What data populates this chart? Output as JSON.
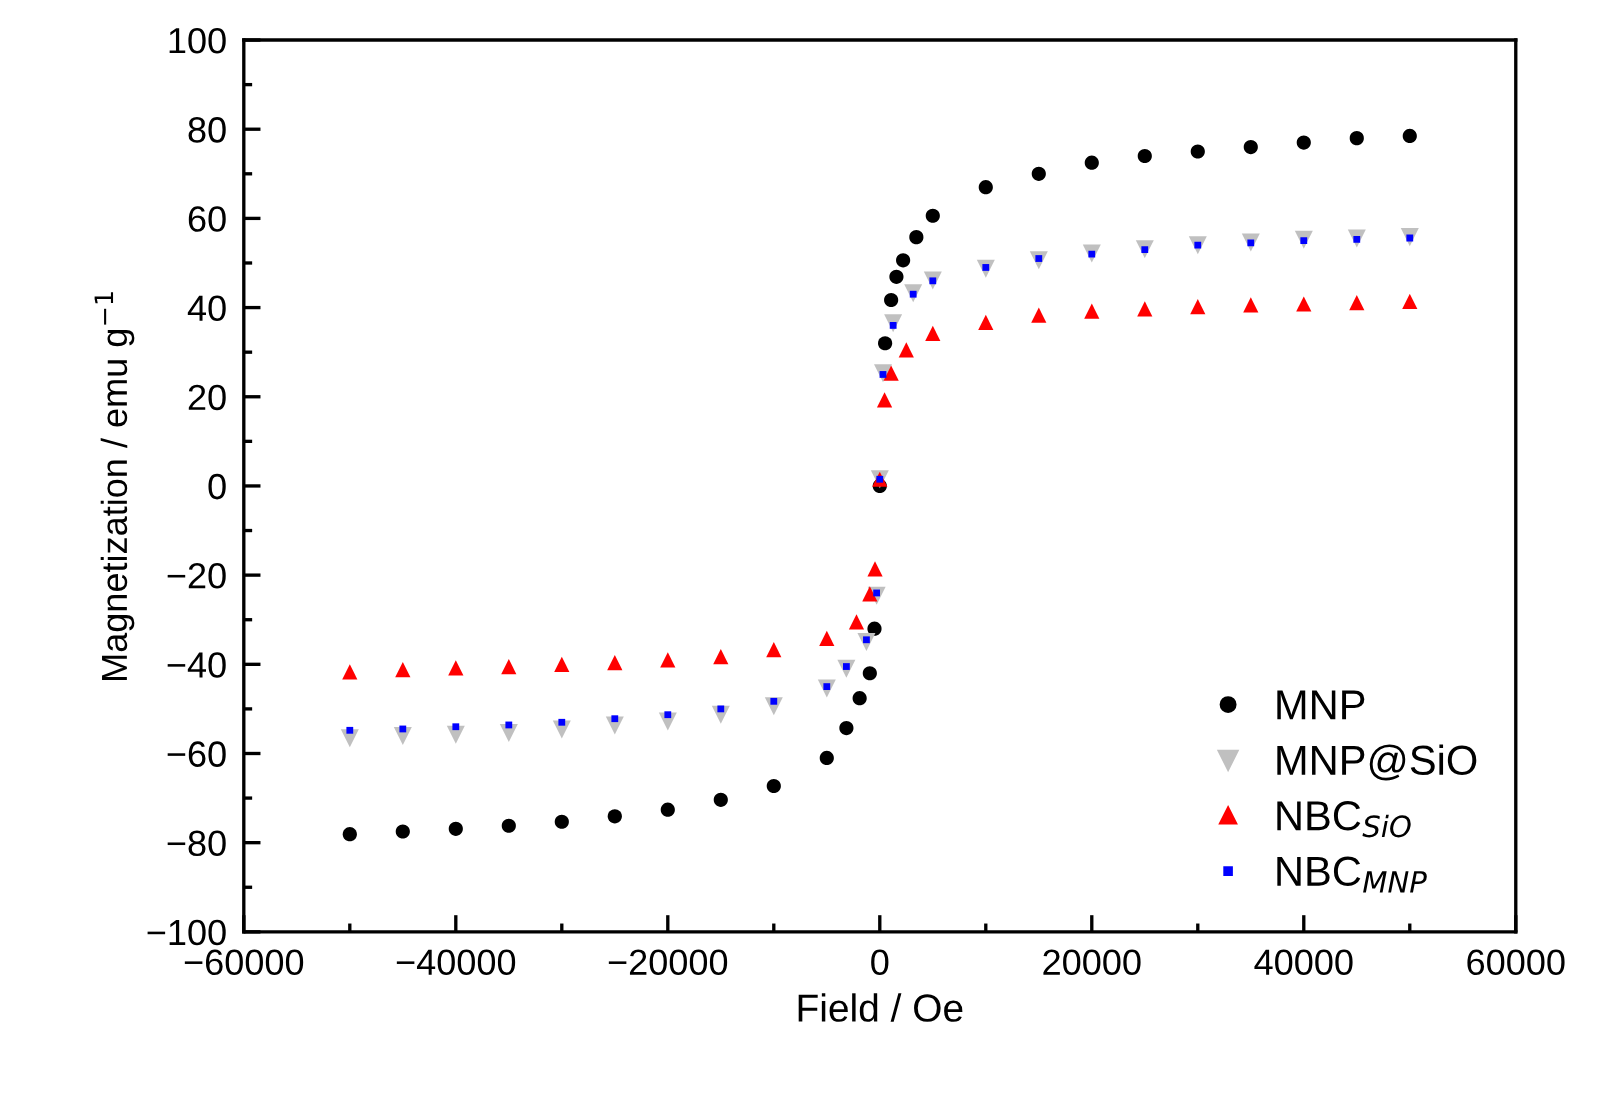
{
  "chart_data": {
    "type": "scatter",
    "xlabel": "Field / Oe",
    "ylabel": "Magnetization / emu g$^{−1}$",
    "xlim": [
      -60000,
      60000
    ],
    "xticks": [
      -60000,
      -40000,
      -20000,
      0,
      20000,
      40000,
      60000
    ],
    "ylim": [
      -100,
      100
    ],
    "yticks": [
      -100,
      -80,
      -60,
      -40,
      -20,
      0,
      20,
      40,
      60,
      80,
      100
    ],
    "grid": false,
    "legend": "bottom right",
    "series": [
      {
        "name": "MNP",
        "color": "#000000",
        "marker": "circle",
        "x": [
          -50000,
          -45000,
          -40000,
          -35000,
          -30000,
          -25000,
          -20000,
          -15000,
          -10000,
          -5000,
          -3150,
          -1900,
          -940,
          -500,
          0,
          500,
          1070,
          1570,
          2200,
          3450,
          5000,
          10000,
          15000,
          20000,
          25000,
          30000,
          35000,
          40000,
          45000,
          50000
        ],
        "values": [
          -78.1,
          -77.5,
          -76.9,
          -76.2,
          -75.3,
          -74.1,
          -72.6,
          -70.4,
          -67.3,
          -61,
          -54.3,
          -47.6,
          -42,
          -32,
          0,
          32,
          41.7,
          46.9,
          50.6,
          55.8,
          60.6,
          67,
          70,
          72.5,
          74,
          75,
          76,
          77,
          78,
          78.5
        ]
      },
      {
        "name": "MNP@SiO",
        "color": "#c0c0c0",
        "marker": "triangle_down",
        "x": [
          -50000,
          -45000,
          -40000,
          -35000,
          -30000,
          -25000,
          -20000,
          -15000,
          -10000,
          -5000,
          -3150,
          -1260,
          -300,
          0,
          300,
          1260,
          3150,
          5000,
          10000,
          15000,
          20000,
          25000,
          30000,
          35000,
          40000,
          45000,
          50000
        ],
        "values": [
          -56.6,
          -56.1,
          -55.8,
          -55.4,
          -54.6,
          -53.7,
          -52.8,
          -51.3,
          -49.4,
          -45.4,
          -41,
          -35,
          -24.6,
          1.5,
          25.3,
          36.5,
          43.2,
          46.1,
          48.7,
          50.6,
          52.1,
          53.1,
          54,
          54.6,
          55.2,
          55.5,
          55.8
        ]
      },
      {
        "name": "NBC$_{SiO}$",
        "color": "#ff0000",
        "marker": "triangle",
        "x": [
          -50000,
          -45000,
          -40000,
          -35000,
          -30000,
          -25000,
          -20000,
          -15000,
          -10000,
          -5000,
          -2200,
          -940,
          -450,
          0,
          450,
          1070,
          2500,
          5000,
          10000,
          15000,
          20000,
          25000,
          30000,
          35000,
          40000,
          45000,
          50000
        ],
        "values": [
          -41.7,
          -41.2,
          -40.8,
          -40.5,
          -40,
          -39.6,
          -39,
          -38.3,
          -36.7,
          -34.2,
          -30.5,
          -24.2,
          -18.6,
          1.5,
          19.3,
          25.3,
          30.5,
          34.2,
          36.7,
          38.3,
          39.2,
          39.7,
          40.2,
          40.6,
          40.8,
          41.1,
          41.4
        ]
      },
      {
        "name": "NBC$_{MNP}$",
        "color": "#0000ff",
        "marker": "square",
        "x": [
          -50000,
          -45000,
          -40000,
          -35000,
          -30000,
          -25000,
          -20000,
          -15000,
          -10000,
          -5000,
          -3150,
          -1260,
          -300,
          0,
          300,
          1260,
          3150,
          5000,
          10000,
          15000,
          20000,
          25000,
          30000,
          35000,
          40000,
          45000,
          50000
        ],
        "values": [
          -54.8,
          -54.5,
          -54,
          -53.6,
          -53,
          -52.2,
          -51.3,
          -50,
          -48.3,
          -45,
          -40.5,
          -34.5,
          -24,
          1.5,
          25,
          36,
          43,
          46,
          49,
          51,
          52,
          53,
          54,
          54.5,
          55,
          55.3,
          55.6
        ]
      }
    ]
  }
}
